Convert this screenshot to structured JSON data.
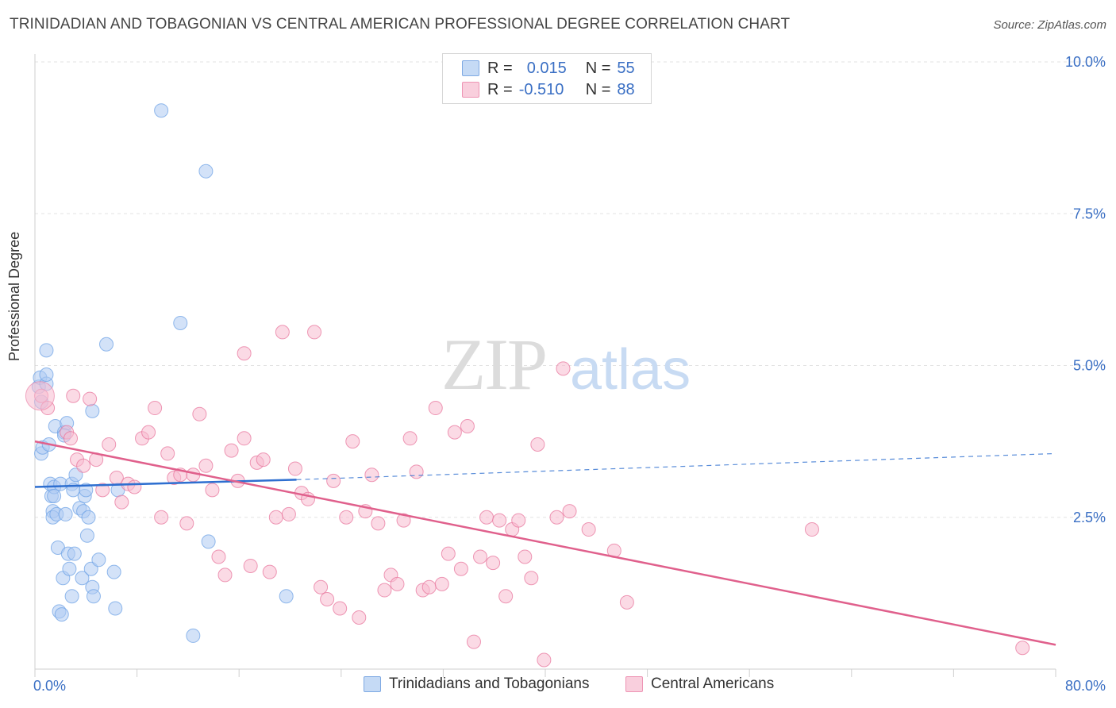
{
  "header": {
    "title": "TRINIDADIAN AND TOBAGONIAN VS CENTRAL AMERICAN PROFESSIONAL DEGREE CORRELATION CHART",
    "source": "Source: ZipAtlas.com"
  },
  "watermark": {
    "zip": "ZIP",
    "atlas": "atlas"
  },
  "legend_top": {
    "rows": [
      {
        "r_label": "R =",
        "r_value": "0.015",
        "n_label": "N =",
        "n_value": "55",
        "color": "#aecbf2"
      },
      {
        "r_label": "R =",
        "r_value": "-0.510",
        "n_label": "N =",
        "n_value": "88",
        "color": "#f7bcd0"
      }
    ]
  },
  "legend_bottom": {
    "items": [
      {
        "label": "Trinidadians and Tobagonians",
        "color": "#aecbf2"
      },
      {
        "label": "Central Americans",
        "color": "#f7bcd0"
      }
    ]
  },
  "chart_data": {
    "type": "scatter",
    "title": "TRINIDADIAN AND TOBAGONIAN VS CENTRAL AMERICAN PROFESSIONAL DEGREE CORRELATION CHART",
    "xlabel": "",
    "ylabel": "Professional Degree",
    "xlim": [
      0,
      80
    ],
    "ylim": [
      0,
      10
    ],
    "x_tick_labels": [
      "0.0%",
      "80.0%"
    ],
    "y_tick_labels": [
      "2.5%",
      "5.0%",
      "7.5%",
      "10.0%"
    ],
    "y_ticks": [
      2.5,
      5.0,
      7.5,
      10.0
    ],
    "series": [
      {
        "name": "Trinidadians and Tobagonians",
        "color": "#6fa3e6",
        "fill": "#aecbf2",
        "trend": {
          "x1": 0,
          "y1": 3.0,
          "x2": 20.5,
          "y2": 3.12,
          "dash_to_x": 80,
          "dash_to_y": 3.55,
          "color": "#2e6fd0"
        },
        "points": [
          [
            0.3,
            4.65
          ],
          [
            0.4,
            4.8
          ],
          [
            0.5,
            4.4
          ],
          [
            0.5,
            3.55
          ],
          [
            0.6,
            3.65
          ],
          [
            0.9,
            4.7
          ],
          [
            0.9,
            4.85
          ],
          [
            0.9,
            5.25
          ],
          [
            1.1,
            3.7
          ],
          [
            1.2,
            3.05
          ],
          [
            1.3,
            2.85
          ],
          [
            1.4,
            2.6
          ],
          [
            1.4,
            2.5
          ],
          [
            1.5,
            3.0
          ],
          [
            1.5,
            2.85
          ],
          [
            1.6,
            4.0
          ],
          [
            1.7,
            2.55
          ],
          [
            1.8,
            2.0
          ],
          [
            1.9,
            0.95
          ],
          [
            2.0,
            3.05
          ],
          [
            2.1,
            0.9
          ],
          [
            2.2,
            1.5
          ],
          [
            2.3,
            3.9
          ],
          [
            2.4,
            2.55
          ],
          [
            2.5,
            4.05
          ],
          [
            2.6,
            1.9
          ],
          [
            2.7,
            1.65
          ],
          [
            2.9,
            3.05
          ],
          [
            2.9,
            1.2
          ],
          [
            3.0,
            2.95
          ],
          [
            3.1,
            1.9
          ],
          [
            3.2,
            3.2
          ],
          [
            3.5,
            2.65
          ],
          [
            3.7,
            1.5
          ],
          [
            3.8,
            2.6
          ],
          [
            3.9,
            2.85
          ],
          [
            4.0,
            2.95
          ],
          [
            4.1,
            2.2
          ],
          [
            4.2,
            2.5
          ],
          [
            4.4,
            1.65
          ],
          [
            4.5,
            4.25
          ],
          [
            4.5,
            1.35
          ],
          [
            4.6,
            1.2
          ],
          [
            5.0,
            1.8
          ],
          [
            5.6,
            5.35
          ],
          [
            6.2,
            1.6
          ],
          [
            6.3,
            1.0
          ],
          [
            6.5,
            2.95
          ],
          [
            9.9,
            9.2
          ],
          [
            11.4,
            5.7
          ],
          [
            12.4,
            0.55
          ],
          [
            13.4,
            8.2
          ],
          [
            13.6,
            2.1
          ],
          [
            19.7,
            1.2
          ],
          [
            2.3,
            3.85
          ]
        ]
      },
      {
        "name": "Central Americans",
        "color": "#e8779e",
        "fill": "#f7bcd0",
        "trend": {
          "x1": 0,
          "y1": 3.75,
          "x2": 80,
          "y2": 0.4,
          "color": "#e0608c"
        },
        "points": [
          [
            0.5,
            4.5
          ],
          [
            1.0,
            4.3
          ],
          [
            2.5,
            3.9
          ],
          [
            2.8,
            3.8
          ],
          [
            3.3,
            3.45
          ],
          [
            3.8,
            3.35
          ],
          [
            4.3,
            4.45
          ],
          [
            4.8,
            3.45
          ],
          [
            5.3,
            2.95
          ],
          [
            5.8,
            3.7
          ],
          [
            6.4,
            3.15
          ],
          [
            6.8,
            2.75
          ],
          [
            7.3,
            3.05
          ],
          [
            7.8,
            3.0
          ],
          [
            8.4,
            3.8
          ],
          [
            8.9,
            3.9
          ],
          [
            9.4,
            4.3
          ],
          [
            9.9,
            2.5
          ],
          [
            10.4,
            3.55
          ],
          [
            10.9,
            3.15
          ],
          [
            11.4,
            3.2
          ],
          [
            11.9,
            2.4
          ],
          [
            12.4,
            3.2
          ],
          [
            12.9,
            4.2
          ],
          [
            13.4,
            3.35
          ],
          [
            13.9,
            2.95
          ],
          [
            14.4,
            1.85
          ],
          [
            14.9,
            1.55
          ],
          [
            15.4,
            3.6
          ],
          [
            15.9,
            3.1
          ],
          [
            16.4,
            3.8
          ],
          [
            16.9,
            1.7
          ],
          [
            17.4,
            3.4
          ],
          [
            17.9,
            3.45
          ],
          [
            18.4,
            1.6
          ],
          [
            18.9,
            2.5
          ],
          [
            19.4,
            5.55
          ],
          [
            19.9,
            2.55
          ],
          [
            20.4,
            3.3
          ],
          [
            20.9,
            2.9
          ],
          [
            21.4,
            2.8
          ],
          [
            21.9,
            5.55
          ],
          [
            22.4,
            1.35
          ],
          [
            22.9,
            1.15
          ],
          [
            23.4,
            3.1
          ],
          [
            23.9,
            1.0
          ],
          [
            24.4,
            2.5
          ],
          [
            24.9,
            3.75
          ],
          [
            25.4,
            0.85
          ],
          [
            25.9,
            2.6
          ],
          [
            26.4,
            3.2
          ],
          [
            26.9,
            2.4
          ],
          [
            27.4,
            1.3
          ],
          [
            27.9,
            1.55
          ],
          [
            28.4,
            1.4
          ],
          [
            28.9,
            2.45
          ],
          [
            29.4,
            3.8
          ],
          [
            29.9,
            3.25
          ],
          [
            30.4,
            1.3
          ],
          [
            30.9,
            1.35
          ],
          [
            31.4,
            4.3
          ],
          [
            31.9,
            1.4
          ],
          [
            32.4,
            1.9
          ],
          [
            32.9,
            3.9
          ],
          [
            33.4,
            1.65
          ],
          [
            33.9,
            4.0
          ],
          [
            34.4,
            0.45
          ],
          [
            34.9,
            1.85
          ],
          [
            35.4,
            2.5
          ],
          [
            35.9,
            1.75
          ],
          [
            36.4,
            2.45
          ],
          [
            36.9,
            1.2
          ],
          [
            37.4,
            2.3
          ],
          [
            37.9,
            2.45
          ],
          [
            38.4,
            1.85
          ],
          [
            38.9,
            1.5
          ],
          [
            39.4,
            3.7
          ],
          [
            39.9,
            0.15
          ],
          [
            40.9,
            2.5
          ],
          [
            41.4,
            4.95
          ],
          [
            41.9,
            2.6
          ],
          [
            43.4,
            2.3
          ],
          [
            45.4,
            1.95
          ],
          [
            46.4,
            1.1
          ],
          [
            16.4,
            5.2
          ],
          [
            60.9,
            2.3
          ],
          [
            77.4,
            0.35
          ],
          [
            3.0,
            4.5
          ]
        ]
      }
    ]
  }
}
